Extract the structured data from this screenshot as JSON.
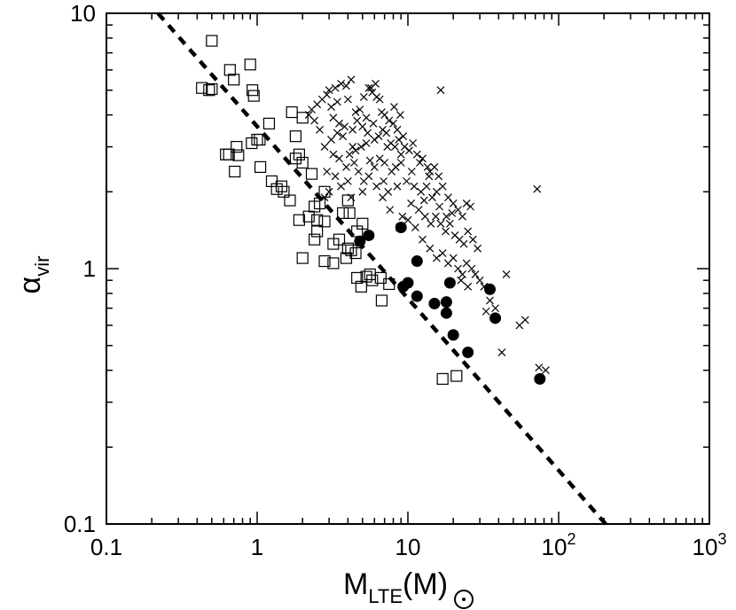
{
  "chart_data": {
    "type": "scatter",
    "scale": "log-log",
    "xlim": [
      0.1,
      1000
    ],
    "ylim": [
      0.1,
      10
    ],
    "x_ticks": [
      {
        "main": "0.1",
        "sup": ""
      },
      {
        "main": "1",
        "sup": ""
      },
      {
        "main": "10",
        "sup": ""
      },
      {
        "main": "10",
        "sup": "2"
      },
      {
        "main": "10",
        "sup": "3"
      }
    ],
    "y_ticks": [
      "0.1",
      "1",
      "10"
    ],
    "xlabel": {
      "main": "M",
      "sub": "LTE",
      "unit_open": "(M",
      "unit_close": ")"
    },
    "ylabel": {
      "main": "α",
      "sub": "vir"
    },
    "grid": false,
    "series": [
      {
        "marker": "open-square",
        "points": [
          [
            0.5,
            7.8
          ],
          [
            0.43,
            5.1
          ],
          [
            0.48,
            5.0
          ],
          [
            0.5,
            5.05
          ],
          [
            0.66,
            6.0
          ],
          [
            0.7,
            5.5
          ],
          [
            0.9,
            6.3
          ],
          [
            0.93,
            5.0
          ],
          [
            0.95,
            4.75
          ],
          [
            1.7,
            4.1
          ],
          [
            2.0,
            3.9
          ],
          [
            1.2,
            3.7
          ],
          [
            1.8,
            3.3
          ],
          [
            1.0,
            3.2
          ],
          [
            1.04,
            3.2
          ],
          [
            0.92,
            3.1
          ],
          [
            0.73,
            3.0
          ],
          [
            1.9,
            2.8
          ],
          [
            0.62,
            2.8
          ],
          [
            0.65,
            2.8
          ],
          [
            0.75,
            2.78
          ],
          [
            2.0,
            2.6
          ],
          [
            1.8,
            2.7
          ],
          [
            1.05,
            2.5
          ],
          [
            0.71,
            2.4
          ],
          [
            2.3,
            2.35
          ],
          [
            1.25,
            2.2
          ],
          [
            1.45,
            2.1
          ],
          [
            1.35,
            2.05
          ],
          [
            1.5,
            2.0
          ],
          [
            2.8,
            2.0
          ],
          [
            1.65,
            1.85
          ],
          [
            2.6,
            1.8
          ],
          [
            2.4,
            1.75
          ],
          [
            4.0,
            1.85
          ],
          [
            3.7,
            1.65
          ],
          [
            2.2,
            1.6
          ],
          [
            4.1,
            1.65
          ],
          [
            5.0,
            1.5
          ],
          [
            2.5,
            1.55
          ],
          [
            1.9,
            1.55
          ],
          [
            2.8,
            1.53
          ],
          [
            2.5,
            1.4
          ],
          [
            2.4,
            1.3
          ],
          [
            3.5,
            1.3
          ],
          [
            4.6,
            1.4
          ],
          [
            3.2,
            1.25
          ],
          [
            4.0,
            1.2
          ],
          [
            4.2,
            1.18
          ],
          [
            4.5,
            1.15
          ],
          [
            2.0,
            1.1
          ],
          [
            3.9,
            1.1
          ],
          [
            2.8,
            1.07
          ],
          [
            3.2,
            1.05
          ],
          [
            5.3,
            0.93
          ],
          [
            5.8,
            0.9
          ],
          [
            4.6,
            0.92
          ],
          [
            6.6,
            0.92
          ],
          [
            7.5,
            0.87
          ],
          [
            5.6,
            0.95
          ],
          [
            4.9,
            0.85
          ],
          [
            6.7,
            0.75
          ],
          [
            17.0,
            0.37
          ],
          [
            21.0,
            0.38
          ]
        ]
      },
      {
        "marker": "cross",
        "points": [
          [
            3.6,
            5.3
          ],
          [
            3.9,
            5.2
          ],
          [
            4.2,
            5.5
          ],
          [
            3.3,
            5.1
          ],
          [
            3.0,
            5.0
          ],
          [
            2.9,
            4.8
          ],
          [
            4.0,
            4.6
          ],
          [
            3.4,
            4.5
          ],
          [
            3.1,
            4.3
          ],
          [
            4.8,
            4.2
          ],
          [
            5.1,
            4.7
          ],
          [
            5.5,
            5.1
          ],
          [
            5.8,
            4.9
          ],
          [
            6.2,
            4.7
          ],
          [
            6.5,
            4.6
          ],
          [
            5.7,
            5.1
          ],
          [
            6.1,
            5.3
          ],
          [
            7.0,
            4.0
          ],
          [
            6.8,
            3.5
          ],
          [
            7.5,
            3.8
          ],
          [
            8.0,
            3.7
          ],
          [
            8.5,
            3.5
          ],
          [
            8.9,
            4.0
          ],
          [
            9.3,
            3.3
          ],
          [
            7.2,
            3.4
          ],
          [
            6.0,
            3.2
          ],
          [
            5.3,
            3.1
          ],
          [
            4.9,
            3.0
          ],
          [
            4.5,
            2.9
          ],
          [
            4.1,
            2.8
          ],
          [
            3.7,
            3.3
          ],
          [
            3.4,
            3.4
          ],
          [
            3.1,
            3.2
          ],
          [
            2.8,
            3.0
          ],
          [
            2.6,
            3.5
          ],
          [
            2.4,
            3.8
          ],
          [
            2.3,
            4.2
          ],
          [
            2.2,
            4.0
          ],
          [
            2.5,
            4.4
          ],
          [
            2.7,
            4.6
          ],
          [
            3.2,
            3.9
          ],
          [
            3.5,
            3.7
          ],
          [
            3.8,
            3.6
          ],
          [
            4.3,
            3.5
          ],
          [
            4.6,
            3.8
          ],
          [
            5.0,
            3.6
          ],
          [
            5.4,
            3.4
          ],
          [
            5.9,
            3.7
          ],
          [
            6.4,
            3.3
          ],
          [
            7.7,
            3.1
          ],
          [
            8.2,
            3.0
          ],
          [
            8.7,
            3.2
          ],
          [
            9.5,
            3.0
          ],
          [
            10.2,
            2.9
          ],
          [
            10.8,
            3.1
          ],
          [
            11.5,
            2.8
          ],
          [
            12.0,
            2.6
          ],
          [
            12.5,
            2.7
          ],
          [
            13.5,
            2.5
          ],
          [
            14.0,
            2.4
          ],
          [
            15.0,
            2.5
          ],
          [
            16.0,
            2.3
          ],
          [
            9.0,
            2.6
          ],
          [
            8.3,
            2.5
          ],
          [
            7.8,
            2.4
          ],
          [
            7.0,
            2.6
          ],
          [
            6.5,
            2.7
          ],
          [
            6.0,
            2.5
          ],
          [
            5.5,
            2.3
          ],
          [
            5.1,
            2.2
          ],
          [
            4.7,
            2.4
          ],
          [
            4.4,
            2.6
          ],
          [
            4.0,
            2.2
          ],
          [
            3.6,
            2.1
          ],
          [
            3.3,
            2.3
          ],
          [
            3.0,
            2.0
          ],
          [
            2.8,
            1.9
          ],
          [
            4.2,
            1.9
          ],
          [
            5.0,
            2.0
          ],
          [
            6.2,
            2.1
          ],
          [
            7.4,
            2.0
          ],
          [
            8.5,
            2.1
          ],
          [
            9.8,
            2.2
          ],
          [
            11.0,
            2.1
          ],
          [
            12.2,
            2.0
          ],
          [
            13.3,
            2.1
          ],
          [
            14.5,
            1.9
          ],
          [
            15.5,
            2.0
          ],
          [
            17.0,
            2.1
          ],
          [
            18.5,
            1.9
          ],
          [
            20.0,
            1.8
          ],
          [
            21.5,
            1.7
          ],
          [
            23.0,
            1.6
          ],
          [
            24.5,
            1.8
          ],
          [
            26.0,
            1.75
          ],
          [
            10.5,
            1.8
          ],
          [
            11.8,
            1.7
          ],
          [
            13.0,
            1.6
          ],
          [
            14.2,
            1.5
          ],
          [
            15.3,
            1.6
          ],
          [
            16.5,
            1.5
          ],
          [
            17.8,
            1.4
          ],
          [
            19.0,
            1.5
          ],
          [
            20.5,
            1.35
          ],
          [
            22.0,
            1.3
          ],
          [
            23.5,
            1.25
          ],
          [
            25.0,
            1.4
          ],
          [
            27.0,
            1.3
          ],
          [
            29.0,
            1.2
          ],
          [
            12.5,
            1.3
          ],
          [
            14.0,
            1.2
          ],
          [
            15.5,
            1.1
          ],
          [
            17.0,
            1.15
          ],
          [
            18.5,
            1.05
          ],
          [
            20.0,
            1.1
          ],
          [
            21.5,
            1.0
          ],
          [
            23.0,
            0.95
          ],
          [
            24.5,
            1.05
          ],
          [
            26.5,
            1.0
          ],
          [
            28.0,
            0.95
          ],
          [
            30.0,
            0.9
          ],
          [
            32.0,
            0.85
          ],
          [
            22.5,
            0.9
          ],
          [
            25.0,
            0.85
          ],
          [
            35.0,
            0.75
          ],
          [
            38.0,
            0.7
          ],
          [
            45.0,
            0.95
          ],
          [
            55.0,
            0.6
          ],
          [
            60.0,
            0.63
          ],
          [
            33.0,
            0.68
          ],
          [
            42.0,
            0.47
          ],
          [
            16.5,
            5.0
          ],
          [
            72.0,
            2.05
          ],
          [
            74.0,
            0.41
          ],
          [
            82.0,
            0.4
          ],
          [
            6.8,
            1.9
          ],
          [
            7.6,
            1.7
          ],
          [
            9.2,
            1.6
          ],
          [
            10.0,
            1.55
          ],
          [
            8.8,
            1.45
          ],
          [
            11.2,
            1.45
          ],
          [
            12.8,
            1.85
          ],
          [
            6.9,
            2.2
          ],
          [
            5.6,
            2.65
          ],
          [
            4.3,
            3.0
          ],
          [
            3.9,
            2.5
          ],
          [
            3.5,
            2.7
          ],
          [
            2.9,
            2.4
          ],
          [
            3.2,
            2.8
          ],
          [
            5.3,
            3.9
          ],
          [
            6.7,
            4.1
          ],
          [
            4.5,
            4.1
          ],
          [
            8.1,
            4.3
          ],
          [
            7.3,
            3.0
          ],
          [
            9.0,
            2.8
          ],
          [
            10.6,
            2.4
          ],
          [
            13.8,
            2.3
          ],
          [
            16.2,
            1.75
          ],
          [
            18.0,
            1.6
          ],
          [
            19.6,
            1.65
          ]
        ]
      },
      {
        "marker": "filled-circle",
        "points": [
          [
            9.0,
            1.45
          ],
          [
            5.5,
            1.35
          ],
          [
            4.8,
            1.28
          ],
          [
            11.5,
            1.07
          ],
          [
            19.0,
            0.88
          ],
          [
            10.0,
            0.88
          ],
          [
            9.3,
            0.85
          ],
          [
            11.5,
            0.78
          ],
          [
            15.0,
            0.73
          ],
          [
            18.0,
            0.74
          ],
          [
            18.0,
            0.67
          ],
          [
            35.0,
            0.83
          ],
          [
            38.0,
            0.64
          ],
          [
            20.0,
            0.55
          ],
          [
            25.0,
            0.47
          ],
          [
            75.0,
            0.37
          ]
        ]
      }
    ],
    "fit_line": {
      "style": "dashed",
      "from": [
        0.22,
        10
      ],
      "to": [
        205,
        0.1
      ]
    }
  }
}
